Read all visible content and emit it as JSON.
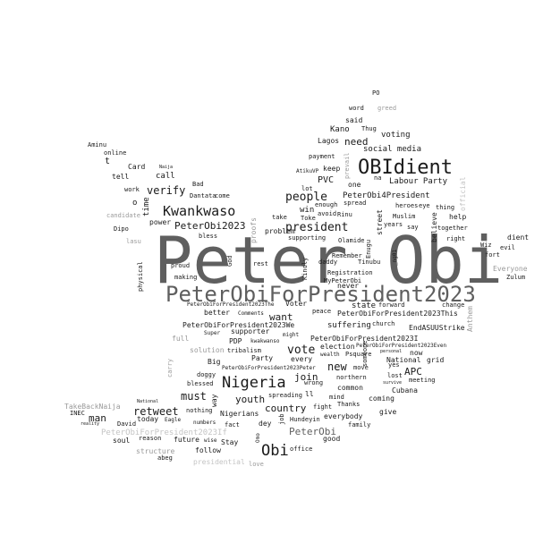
{
  "colors": {
    "background": "#ffffff",
    "dark": "#1a1a1a",
    "mid": "#5f5f5f",
    "light": "#9a9a9a",
    "pale": "#c4c4c4"
  },
  "words": [
    {
      "text": "Peter Obi",
      "color": "mid",
      "size": 72
    },
    {
      "text": "PeterObiForPresident2023",
      "color": "mid",
      "size": 24
    },
    {
      "text": "OBIdient",
      "color": "dark",
      "size": 22
    },
    {
      "text": "Nigeria",
      "color": "dark",
      "size": 17
    },
    {
      "text": "Kwankwaso",
      "color": "dark",
      "size": 15
    },
    {
      "text": "Obi",
      "color": "dark",
      "size": 17
    },
    {
      "text": "people",
      "color": "dark",
      "size": 13
    },
    {
      "text": "president",
      "color": "dark",
      "size": 13
    },
    {
      "text": "verify",
      "color": "dark",
      "size": 12
    },
    {
      "text": "vote",
      "color": "dark",
      "size": 13
    },
    {
      "text": "retweet",
      "color": "dark",
      "size": 12
    },
    {
      "text": "must",
      "color": "dark",
      "size": 12
    },
    {
      "text": "new",
      "color": "dark",
      "size": 12
    },
    {
      "text": "PeterObi2023",
      "color": "dark",
      "size": 11
    },
    {
      "text": "youth",
      "color": "dark",
      "size": 11
    },
    {
      "text": "country",
      "color": "dark",
      "size": 11
    },
    {
      "text": "join",
      "color": "dark",
      "size": 11
    },
    {
      "text": "want",
      "color": "dark",
      "size": 11
    },
    {
      "text": "APC",
      "color": "dark",
      "size": 11
    },
    {
      "text": "man",
      "color": "dark",
      "size": 11
    },
    {
      "text": "PeterObi",
      "color": "mid",
      "size": 11
    },
    {
      "text": "need",
      "color": "dark",
      "size": 11
    },
    {
      "text": "PVC",
      "color": "dark",
      "size": 10
    },
    {
      "text": "social media",
      "color": "dark",
      "size": 9
    },
    {
      "text": "Labour Party",
      "color": "dark",
      "size": 9
    },
    {
      "text": "voting",
      "color": "dark",
      "size": 9
    },
    {
      "text": "Kano",
      "color": "dark",
      "size": 9
    },
    {
      "text": "said",
      "color": "dark",
      "size": 8
    },
    {
      "text": "Lagos",
      "color": "dark",
      "size": 8
    },
    {
      "text": "call",
      "color": "dark",
      "size": 9
    },
    {
      "text": "win",
      "color": "dark",
      "size": 9
    },
    {
      "text": "Card",
      "color": "dark",
      "size": 8
    },
    {
      "text": "t",
      "color": "dark",
      "size": 10
    },
    {
      "text": "o",
      "color": "dark",
      "size": 9
    },
    {
      "text": "PeterObi4President",
      "color": "dark",
      "size": 9
    },
    {
      "text": "one",
      "color": "dark",
      "size": 8
    },
    {
      "text": "keep",
      "color": "dark",
      "size": 8
    },
    {
      "text": "help",
      "color": "dark",
      "size": 8
    },
    {
      "text": "state",
      "color": "dark",
      "size": 9
    },
    {
      "text": "Voter",
      "color": "dark",
      "size": 8
    },
    {
      "text": "suffering",
      "color": "dark",
      "size": 9
    },
    {
      "text": "PeterObiForPresident2023We",
      "color": "dark",
      "size": 8
    },
    {
      "text": "PeterObiForPresident2023This",
      "color": "dark",
      "size": 8
    },
    {
      "text": "PeterObiForPresident2023I",
      "color": "dark",
      "size": 8
    },
    {
      "text": "EndASUUStrike",
      "color": "dark",
      "size": 8
    },
    {
      "text": "better",
      "color": "dark",
      "size": 8
    },
    {
      "text": "supporter",
      "color": "dark",
      "size": 8
    },
    {
      "text": "PDP",
      "color": "dark",
      "size": 8
    },
    {
      "text": "election",
      "color": "dark",
      "size": 8
    },
    {
      "text": "now",
      "color": "dark",
      "size": 8
    },
    {
      "text": "every",
      "color": "dark",
      "size": 8
    },
    {
      "text": "Party",
      "color": "dark",
      "size": 8
    },
    {
      "text": "Big",
      "color": "dark",
      "size": 8
    },
    {
      "text": "National",
      "color": "dark",
      "size": 8
    },
    {
      "text": "grid",
      "color": "dark",
      "size": 8
    },
    {
      "text": "ll",
      "color": "dark",
      "size": 8
    },
    {
      "text": "common",
      "color": "dark",
      "size": 8
    },
    {
      "text": "coming",
      "color": "dark",
      "size": 8
    },
    {
      "text": "Cubana",
      "color": "dark",
      "size": 8
    },
    {
      "text": "give",
      "color": "dark",
      "size": 8
    },
    {
      "text": "today",
      "color": "dark",
      "size": 8
    },
    {
      "text": "Nigerians",
      "color": "dark",
      "size": 8
    },
    {
      "text": "dey",
      "color": "dark",
      "size": 8
    },
    {
      "text": "everybody",
      "color": "dark",
      "size": 8
    },
    {
      "text": "good",
      "color": "dark",
      "size": 8
    },
    {
      "text": "future",
      "color": "dark",
      "size": 8
    },
    {
      "text": "Stay",
      "color": "dark",
      "size": 8
    },
    {
      "text": "follow",
      "color": "dark",
      "size": 8
    },
    {
      "text": "soul",
      "color": "dark",
      "size": 8
    },
    {
      "text": "never",
      "color": "dark",
      "size": 8
    },
    {
      "text": "Remember",
      "color": "dark",
      "size": 7
    },
    {
      "text": "Registration",
      "color": "dark",
      "size": 7
    },
    {
      "text": "problem",
      "color": "dark",
      "size": 8
    },
    {
      "text": "power",
      "color": "dark",
      "size": 8
    },
    {
      "text": "tell",
      "color": "dark",
      "size": 8
    },
    {
      "text": "online",
      "color": "dark",
      "size": 7
    },
    {
      "text": "Aminu",
      "color": "dark",
      "size": 7
    },
    {
      "text": "work",
      "color": "dark",
      "size": 7
    },
    {
      "text": "Bad",
      "color": "dark",
      "size": 7
    },
    {
      "text": "Dantata",
      "color": "dark",
      "size": 7
    },
    {
      "text": "come",
      "color": "dark",
      "size": 7
    },
    {
      "text": "Dipo",
      "color": "dark",
      "size": 7
    },
    {
      "text": "bless",
      "color": "dark",
      "size": 7
    },
    {
      "text": "proud",
      "color": "dark",
      "size": 7
    },
    {
      "text": "making",
      "color": "dark",
      "size": 7
    },
    {
      "text": "rest",
      "color": "dark",
      "size": 7
    },
    {
      "text": "take",
      "color": "dark",
      "size": 7
    },
    {
      "text": "Toke",
      "color": "dark",
      "size": 7
    },
    {
      "text": "avoid",
      "color": "dark",
      "size": 7
    },
    {
      "text": "Rinu",
      "color": "dark",
      "size": 7
    },
    {
      "text": "supporting",
      "color": "dark",
      "size": 7
    },
    {
      "text": "Olamide",
      "color": "dark",
      "size": 7
    },
    {
      "text": "daddy",
      "color": "dark",
      "size": 7
    },
    {
      "text": "Tinubu",
      "color": "dark",
      "size": 7
    },
    {
      "text": "MyPeterObi",
      "color": "dark",
      "size": 7
    },
    {
      "text": "lot",
      "color": "dark",
      "size": 7
    },
    {
      "text": "enough",
      "color": "dark",
      "size": 7
    },
    {
      "text": "spread",
      "color": "dark",
      "size": 7
    },
    {
      "text": "AtikuVP",
      "color": "dark",
      "size": 6
    },
    {
      "text": "payment",
      "color": "dark",
      "size": 7
    },
    {
      "text": "Thug",
      "color": "dark",
      "size": 7
    },
    {
      "text": "word",
      "color": "dark",
      "size": 7
    },
    {
      "text": "greed",
      "color": "light",
      "size": 7
    },
    {
      "text": "years",
      "color": "dark",
      "size": 7
    },
    {
      "text": "Muslim",
      "color": "dark",
      "size": 7
    },
    {
      "text": "heroes",
      "color": "dark",
      "size": 7
    },
    {
      "text": "eye",
      "color": "dark",
      "size": 7
    },
    {
      "text": "thing",
      "color": "dark",
      "size": 7
    },
    {
      "text": "say",
      "color": "dark",
      "size": 7
    },
    {
      "text": "together",
      "color": "dark",
      "size": 7
    },
    {
      "text": "right",
      "color": "dark",
      "size": 7
    },
    {
      "text": "dient",
      "color": "dark",
      "size": 8
    },
    {
      "text": "Wiz",
      "color": "dark",
      "size": 7
    },
    {
      "text": "evil",
      "color": "dark",
      "size": 7
    },
    {
      "text": "fort",
      "color": "dark",
      "size": 7
    },
    {
      "text": "Everyone",
      "color": "light",
      "size": 8
    },
    {
      "text": "Zulum",
      "color": "dark",
      "size": 7
    },
    {
      "text": "na",
      "color": "dark",
      "size": 7
    },
    {
      "text": "change",
      "color": "dark",
      "size": 7
    },
    {
      "text": "forward",
      "color": "dark",
      "size": 7
    },
    {
      "text": "church",
      "color": "dark",
      "size": 7
    },
    {
      "text": "peace",
      "color": "dark",
      "size": 7
    },
    {
      "text": "Comments",
      "color": "dark",
      "size": 6
    },
    {
      "text": "PeterObiForPresident2023The",
      "color": "dark",
      "size": 6
    },
    {
      "text": "Super",
      "color": "dark",
      "size": 6
    },
    {
      "text": "full",
      "color": "light",
      "size": 8
    },
    {
      "text": "kwakwanso",
      "color": "dark",
      "size": 6
    },
    {
      "text": "might",
      "color": "dark",
      "size": 6
    },
    {
      "text": "solution",
      "color": "light",
      "size": 8
    },
    {
      "text": "tribalism",
      "color": "dark",
      "size": 7
    },
    {
      "text": "Psquare",
      "color": "dark",
      "size": 7
    },
    {
      "text": "wealth",
      "color": "dark",
      "size": 6
    },
    {
      "text": "PeterObiForPresident2023Even",
      "color": "dark",
      "size": 6
    },
    {
      "text": "personal",
      "color": "dark",
      "size": 5
    },
    {
      "text": "doggy",
      "color": "dark",
      "size": 7
    },
    {
      "text": "PeterObiForPresident2023Peter",
      "color": "dark",
      "size": 6
    },
    {
      "text": "move",
      "color": "dark",
      "size": 7
    },
    {
      "text": "yes",
      "color": "dark",
      "size": 7
    },
    {
      "text": "lost",
      "color": "dark",
      "size": 7
    },
    {
      "text": "meeting",
      "color": "dark",
      "size": 7
    },
    {
      "text": "northern",
      "color": "dark",
      "size": 7
    },
    {
      "text": "blessed",
      "color": "dark",
      "size": 7
    },
    {
      "text": "nothing",
      "color": "dark",
      "size": 7
    },
    {
      "text": "wrong",
      "color": "dark",
      "size": 7
    },
    {
      "text": "survive",
      "color": "dark",
      "size": 5
    },
    {
      "text": "mind",
      "color": "dark",
      "size": 7
    },
    {
      "text": "spreading",
      "color": "dark",
      "size": 7
    },
    {
      "text": "Thanks",
      "color": "dark",
      "size": 7
    },
    {
      "text": "fight",
      "color": "dark",
      "size": 7
    },
    {
      "text": "family",
      "color": "dark",
      "size": 7
    },
    {
      "text": "Hundeyin",
      "color": "dark",
      "size": 7
    },
    {
      "text": "fact",
      "color": "dark",
      "size": 7
    },
    {
      "text": "numbers",
      "color": "dark",
      "size": 6
    },
    {
      "text": "Eagle",
      "color": "dark",
      "size": 6
    },
    {
      "text": "David",
      "color": "dark",
      "size": 7
    },
    {
      "text": "National",
      "color": "dark",
      "size": 5
    },
    {
      "text": "INEC",
      "color": "dark",
      "size": 7
    },
    {
      "text": "TakeBackNaija",
      "color": "light",
      "size": 8
    },
    {
      "text": "reality",
      "color": "dark",
      "size": 5
    },
    {
      "text": "PeterObiForPresident2023If",
      "color": "pale",
      "size": 9
    },
    {
      "text": "reason",
      "color": "dark",
      "size": 7
    },
    {
      "text": "wise",
      "color": "dark",
      "size": 6
    },
    {
      "text": "structure",
      "color": "light",
      "size": 8
    },
    {
      "text": "abeg",
      "color": "dark",
      "size": 7
    },
    {
      "text": "presidential",
      "color": "pale",
      "size": 8
    },
    {
      "text": "love",
      "color": "light",
      "size": 7
    },
    {
      "text": "office",
      "color": "dark",
      "size": 7
    },
    {
      "text": "candidate",
      "color": "light",
      "size": 7
    },
    {
      "text": "lasu",
      "color": "light",
      "size": 7
    },
    {
      "text": "Naija",
      "color": "dark",
      "size": 5
    },
    {
      "text": "PO",
      "color": "dark",
      "size": 7
    },
    {
      "text": "time",
      "color": "dark",
      "size": 9,
      "vertical": true
    },
    {
      "text": "prevail",
      "color": "light",
      "size": 7,
      "vertical": true
    },
    {
      "text": "official",
      "color": "pale",
      "size": 8,
      "vertical": true
    },
    {
      "text": "proofs",
      "color": "light",
      "size": 8,
      "vertical": true
    },
    {
      "text": "God",
      "color": "dark",
      "size": 7,
      "vertical": true
    },
    {
      "text": "physical",
      "color": "dark",
      "size": 7,
      "vertical": true
    },
    {
      "text": "Kindly",
      "color": "dark",
      "size": 7,
      "vertical": true
    },
    {
      "text": "street",
      "color": "dark",
      "size": 8,
      "vertical": true
    },
    {
      "text": "Enugu",
      "color": "dark",
      "size": 7,
      "vertical": true
    },
    {
      "text": "believe",
      "color": "dark",
      "size": 8,
      "vertical": true
    },
    {
      "text": "_ng01",
      "color": "dark",
      "size": 6,
      "vertical": true
    },
    {
      "text": "someone",
      "color": "dark",
      "size": 7,
      "vertical": true
    },
    {
      "text": "Anthem",
      "color": "light",
      "size": 8,
      "vertical": true
    },
    {
      "text": "carry",
      "color": "light",
      "size": 7,
      "vertical": true
    },
    {
      "text": "way",
      "color": "dark",
      "size": 8,
      "vertical": true
    },
    {
      "text": "job",
      "color": "dark",
      "size": 7,
      "vertical": true
    },
    {
      "text": "Omo",
      "color": "dark",
      "size": 6,
      "vertical": true
    }
  ]
}
